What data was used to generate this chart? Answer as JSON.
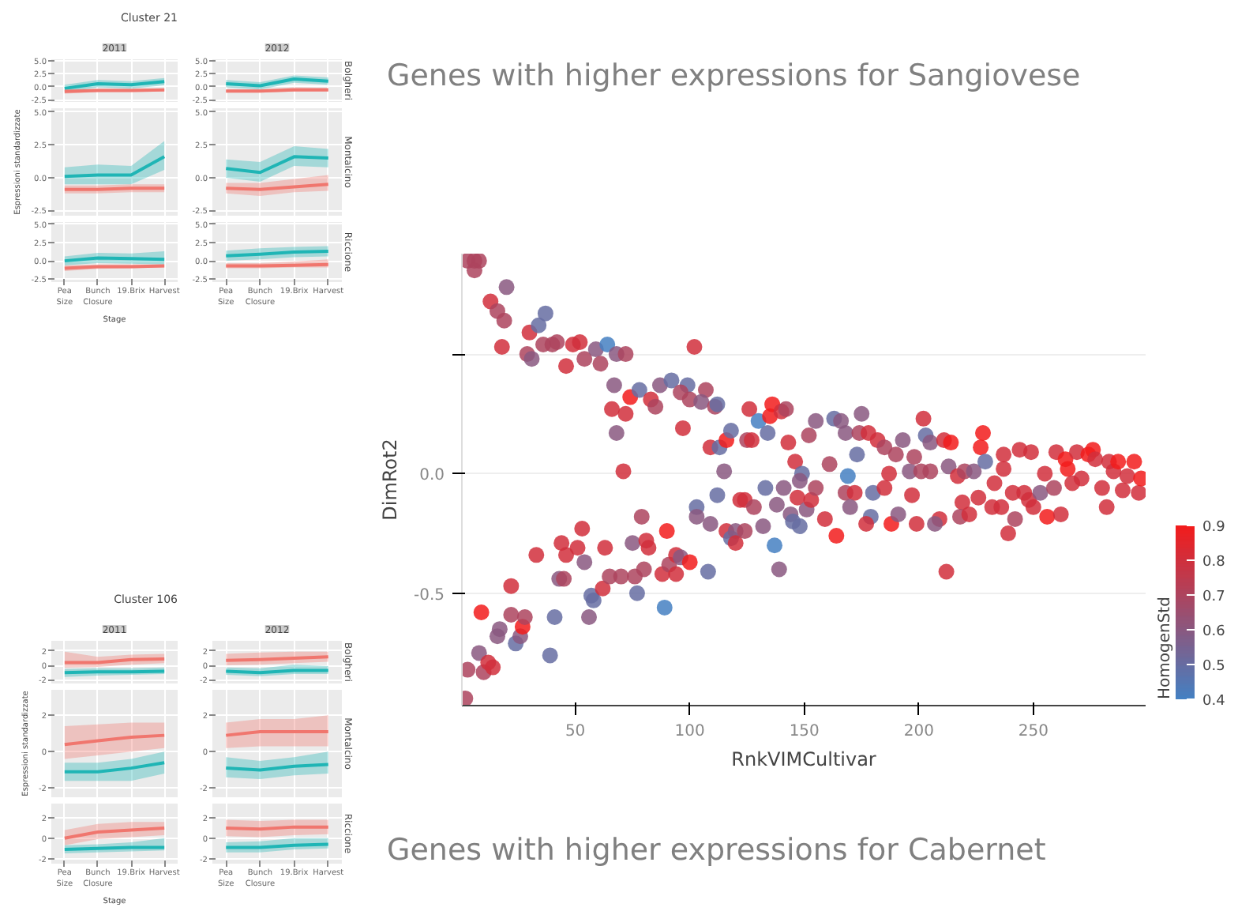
{
  "chart_data": [
    {
      "type": "line",
      "title": "Cluster 21",
      "subtitle": "2011",
      "categories": [
        null,
        null,
        null,
        null
      ],
      "ylim": [
        -2.9,
        5.3
      ],
      "yticks": [
        {
          "value": -2.5,
          "label": "-2.5"
        },
        {
          "value": 0,
          "label": "0.0"
        },
        {
          "value": 2.5,
          "label": "2.5"
        },
        {
          "value": 5,
          "label": "5.0"
        }
      ],
      "grid": true,
      "tick_labels": "y",
      "series": [
        {
          "color": "#1fb5b5",
          "values": [
            -0.3,
            0.6,
            0.4,
            1.0
          ],
          "lower": [
            -1.0,
            -0.1,
            -0.3,
            0.3
          ],
          "upper": [
            0.4,
            1.3,
            1.1,
            1.7
          ]
        },
        {
          "color": "#f0766e",
          "values": [
            -0.9,
            -0.7,
            -0.7,
            -0.6
          ],
          "lower": [
            -1.3,
            -1.0,
            -1.0,
            -0.9
          ],
          "upper": [
            -0.5,
            -0.4,
            -0.4,
            -0.3
          ]
        }
      ]
    },
    {
      "type": "line",
      "subtitle": "2012",
      "y2label": "Bolgheri",
      "categories": [
        null,
        null,
        null,
        null
      ],
      "ylim": [
        -2.9,
        5.3
      ],
      "yticks": [
        {
          "value": -2.5,
          "label": "-2.5"
        },
        {
          "value": 0,
          "label": "0.0"
        },
        {
          "value": 2.5,
          "label": "2.5"
        },
        {
          "value": 5,
          "label": "5.0"
        }
      ],
      "grid": true,
      "tick_labels": "y",
      "series": [
        {
          "color": "#1fb5b5",
          "values": [
            0.6,
            0.2,
            1.5,
            1.1
          ],
          "lower": [
            -0.1,
            -0.5,
            0.8,
            0.4
          ],
          "upper": [
            1.3,
            0.9,
            2.2,
            1.8
          ]
        },
        {
          "color": "#f0766e",
          "values": [
            -0.8,
            -0.8,
            -0.6,
            -0.6
          ],
          "lower": [
            -1.1,
            -1.1,
            -0.9,
            -0.9
          ],
          "upper": [
            -0.5,
            -0.5,
            -0.1,
            -0.2
          ]
        }
      ]
    },
    {
      "type": "line",
      "ylabel": "Espressioni standardizzate",
      "categories": [
        null,
        null,
        null,
        null
      ],
      "ylim": [
        -2.9,
        5.3
      ],
      "yticks": [
        {
          "value": -2.5,
          "label": "-2.5"
        },
        {
          "value": 0,
          "label": "0.0"
        },
        {
          "value": 2.5,
          "label": "2.5"
        },
        {
          "value": 5,
          "label": "5.0"
        }
      ],
      "grid": true,
      "tick_labels": "y",
      "series": [
        {
          "color": "#1fb5b5",
          "values": [
            0.1,
            0.2,
            0.2,
            1.6
          ],
          "lower": [
            -0.5,
            -0.5,
            -0.5,
            0.6
          ],
          "upper": [
            0.8,
            1.0,
            0.9,
            2.8
          ]
        },
        {
          "color": "#f0766e",
          "values": [
            -0.9,
            -0.9,
            -0.8,
            -0.8
          ],
          "lower": [
            -1.2,
            -1.2,
            -1.1,
            -1.1
          ],
          "upper": [
            -0.6,
            -0.6,
            -0.5,
            -0.5
          ]
        }
      ]
    },
    {
      "type": "line",
      "y2label": "Montalcino",
      "categories": [
        null,
        null,
        null,
        null
      ],
      "ylim": [
        -2.9,
        5.3
      ],
      "yticks": [
        {
          "value": -2.5,
          "label": "-2.5"
        },
        {
          "value": 0,
          "label": "0.0"
        },
        {
          "value": 2.5,
          "label": "2.5"
        },
        {
          "value": 5,
          "label": "5.0"
        }
      ],
      "grid": true,
      "tick_labels": "y",
      "series": [
        {
          "color": "#1fb5b5",
          "values": [
            0.7,
            0.4,
            1.6,
            1.5
          ],
          "lower": [
            0.0,
            -0.3,
            0.9,
            0.8
          ],
          "upper": [
            1.4,
            1.2,
            2.4,
            2.2
          ]
        },
        {
          "color": "#f0766e",
          "values": [
            -0.8,
            -0.9,
            -0.7,
            -0.5
          ],
          "lower": [
            -1.2,
            -1.4,
            -1.1,
            -1.0
          ],
          "upper": [
            -0.4,
            -0.4,
            -0.1,
            0.2
          ]
        }
      ]
    },
    {
      "type": "line",
      "xlabel": "Stage",
      "categories": [
        "Pea Size",
        "Bunch Closure",
        "19.Brix",
        "Harvest"
      ],
      "ylim": [
        -2.9,
        5.3
      ],
      "yticks": [
        {
          "value": -2.5,
          "label": "-2.5"
        },
        {
          "value": 0,
          "label": "0.0"
        },
        {
          "value": 2.5,
          "label": "2.5"
        },
        {
          "value": 5,
          "label": "5.0"
        }
      ],
      "grid": true,
      "series": [
        {
          "color": "#1fb5b5",
          "values": [
            0.0,
            0.4,
            0.3,
            0.2
          ],
          "lower": [
            -0.6,
            -0.3,
            -0.4,
            -0.5
          ],
          "upper": [
            0.6,
            1.1,
            1.0,
            1.3
          ]
        },
        {
          "color": "#f0766e",
          "values": [
            -1.0,
            -0.8,
            -0.8,
            -0.7
          ],
          "lower": [
            -1.4,
            -1.1,
            -1.0,
            -0.9
          ],
          "upper": [
            -0.6,
            -0.5,
            -0.5,
            -0.5
          ]
        }
      ]
    },
    {
      "type": "line",
      "y2label": "Riccione",
      "categories": [
        "Pea Size",
        "Bunch Closure",
        "19.Brix",
        "Harvest"
      ],
      "ylim": [
        -2.9,
        5.3
      ],
      "yticks": [
        {
          "value": -2.5,
          "label": "-2.5"
        },
        {
          "value": 0,
          "label": "0.0"
        },
        {
          "value": 2.5,
          "label": "2.5"
        },
        {
          "value": 5,
          "label": "5.0"
        }
      ],
      "grid": true,
      "series": [
        {
          "color": "#1fb5b5",
          "values": [
            0.7,
            0.9,
            1.2,
            1.3
          ],
          "lower": [
            0.0,
            0.2,
            0.5,
            0.6
          ],
          "upper": [
            1.4,
            1.7,
            1.9,
            2.0
          ]
        },
        {
          "color": "#f0766e",
          "values": [
            -0.7,
            -0.7,
            -0.6,
            -0.5
          ],
          "lower": [
            -1.0,
            -1.0,
            -0.9,
            -0.9
          ],
          "upper": [
            -0.3,
            -0.3,
            -0.1,
            0.2
          ]
        }
      ]
    },
    {
      "type": "scatter",
      "xlabel": "RnkVIMCultivar",
      "ylabel": "DimRot2",
      "clabel": "HomogenStd",
      "marker": "circle",
      "grid": "y",
      "annotations": [
        "Genes with higher expressions for Sangiovese",
        "Genes with higher expressions for Cabernet"
      ],
      "xlim": [
        0.5,
        299
      ],
      "ylim": [
        -0.97,
        0.92
      ],
      "xticks": [
        50,
        100,
        150,
        200,
        250
      ],
      "yticks": [
        {
          "value": -0.5,
          "label": "-0.5"
        },
        {
          "value": 0,
          "label": "0.0"
        },
        {
          "value": 0.5,
          "label": null
        }
      ],
      "clim": [
        0.4,
        0.9
      ],
      "cticks": [
        0.4,
        0.5,
        0.6,
        0.7,
        0.8,
        0.9
      ],
      "x": [
        3,
        6,
        8,
        6,
        13,
        16,
        20,
        19,
        18,
        30,
        29,
        31,
        34,
        37,
        36,
        40,
        42,
        46,
        49,
        52,
        54,
        59,
        61,
        64,
        68,
        72,
        67,
        66,
        68,
        72,
        74,
        71,
        78,
        83,
        85,
        87,
        92,
        99,
        96,
        97,
        102,
        100,
        107,
        105,
        111,
        112,
        109,
        113,
        116,
        118,
        115,
        126,
        125,
        127,
        130,
        134,
        136,
        135,
        140,
        142,
        143,
        146,
        149,
        148,
        152,
        155,
        2,
        3,
        8,
        9,
        10,
        12,
        14,
        16,
        17,
        22,
        22,
        24,
        26,
        27,
        28,
        33,
        39,
        41,
        43,
        45,
        44,
        46,
        51,
        53,
        54,
        56,
        57,
        58,
        62,
        63,
        65,
        70,
        75,
        77,
        76,
        79,
        80,
        81,
        82,
        88,
        89,
        90,
        91,
        94,
        94,
        96,
        100,
        103,
        103,
        108,
        109,
        112,
        116,
        118,
        120,
        120,
        122,
        124,
        124,
        128,
        132,
        133,
        137,
        138,
        139,
        141,
        144,
        145,
        147,
        148,
        151,
        153,
        155,
        159,
        161,
        163,
        166,
        168,
        175,
        174,
        173,
        169,
        168,
        172,
        170,
        164,
        178,
        180,
        179,
        177,
        182,
        185,
        187,
        185,
        188,
        190,
        193,
        191,
        196,
        197,
        198,
        199,
        201,
        202,
        203,
        205,
        205,
        209,
        207,
        211,
        214,
        212,
        213,
        217,
        220,
        219,
        218,
        222,
        224,
        226,
        227,
        228,
        229,
        232,
        233,
        236,
        237,
        237,
        239,
        241,
        242,
        244,
        246,
        248,
        249,
        250,
        253,
        255,
        256,
        259,
        260,
        262,
        264,
        265,
        267,
        269,
        271,
        274,
        276,
        277,
        280,
        282,
        283,
        285,
        287,
        289,
        291,
        294,
        296,
        297
      ],
      "values": [
        0.89,
        0.89,
        0.89,
        0.85,
        0.72,
        0.68,
        0.78,
        0.64,
        0.53,
        0.59,
        0.5,
        0.48,
        0.62,
        0.67,
        0.54,
        0.54,
        0.55,
        0.45,
        0.54,
        0.55,
        0.48,
        0.52,
        0.46,
        0.54,
        0.5,
        0.5,
        0.37,
        0.27,
        0.17,
        0.25,
        0.32,
        0.01,
        0.35,
        0.31,
        0.28,
        0.37,
        0.39,
        0.37,
        0.34,
        0.19,
        0.53,
        0.31,
        0.35,
        0.3,
        0.28,
        0.29,
        0.11,
        0.11,
        0.14,
        0.18,
        0.01,
        0.27,
        0.14,
        0.14,
        0.22,
        0.17,
        0.29,
        0.24,
        0.26,
        0.27,
        0.13,
        0.05,
        0.0,
        -0.03,
        0.16,
        0.22,
        -0.94,
        -0.82,
        -0.75,
        -0.58,
        -0.83,
        -0.79,
        -0.81,
        -0.68,
        -0.65,
        -0.59,
        -0.47,
        -0.71,
        -0.68,
        -0.64,
        -0.6,
        -0.34,
        -0.76,
        -0.6,
        -0.44,
        -0.44,
        -0.29,
        -0.34,
        -0.31,
        -0.23,
        -0.37,
        -0.6,
        -0.51,
        -0.53,
        -0.48,
        -0.31,
        -0.43,
        -0.43,
        -0.29,
        -0.5,
        -0.43,
        -0.18,
        -0.4,
        -0.28,
        -0.31,
        -0.42,
        -0.56,
        -0.24,
        -0.38,
        -0.34,
        -0.42,
        -0.35,
        -0.37,
        -0.14,
        -0.18,
        -0.41,
        -0.21,
        -0.09,
        -0.24,
        -0.27,
        -0.24,
        -0.29,
        -0.11,
        -0.11,
        -0.24,
        -0.14,
        -0.22,
        -0.06,
        -0.3,
        -0.13,
        -0.4,
        -0.06,
        -0.17,
        -0.2,
        -0.1,
        -0.22,
        -0.15,
        -0.11,
        -0.06,
        -0.19,
        0.04,
        0.23,
        0.22,
        0.17,
        0.25,
        0.17,
        0.08,
        -0.01,
        -0.08,
        -0.08,
        -0.14,
        -0.26,
        0.17,
        -0.08,
        -0.18,
        -0.21,
        0.14,
        0.11,
        0.0,
        -0.06,
        -0.21,
        0.08,
        0.14,
        -0.17,
        0.01,
        -0.09,
        0.07,
        -0.21,
        0.01,
        0.23,
        0.16,
        0.13,
        0.01,
        -0.19,
        -0.21,
        0.14,
        0.13,
        -0.41,
        0.03,
        -0.01,
        0.01,
        -0.12,
        -0.18,
        -0.17,
        0.01,
        -0.1,
        0.11,
        0.17,
        0.05,
        -0.14,
        -0.04,
        -0.14,
        0.02,
        0.08,
        -0.25,
        -0.08,
        -0.19,
        0.1,
        -0.08,
        -0.11,
        0.09,
        -0.14,
        -0.08,
        0.0,
        -0.18,
        -0.06,
        0.09,
        -0.17,
        0.06,
        0.02,
        -0.04,
        0.09,
        -0.02,
        0.08,
        0.1,
        0.06,
        -0.06,
        -0.14,
        0.05,
        0.01,
        0.05,
        -0.07,
        -0.01,
        0.05,
        -0.08,
        -0.02
      ],
      "cvalues": [
        0.7,
        0.7,
        0.7,
        0.7,
        0.8,
        0.7,
        0.6,
        0.7,
        0.8,
        0.8,
        0.7,
        0.6,
        0.5,
        0.5,
        0.7,
        0.7,
        0.7,
        0.8,
        0.8,
        0.8,
        0.7,
        0.6,
        0.7,
        0.4,
        0.6,
        0.7,
        0.6,
        0.8,
        0.6,
        0.8,
        0.9,
        0.8,
        0.5,
        0.8,
        0.7,
        0.6,
        0.5,
        0.5,
        0.7,
        0.8,
        0.8,
        0.7,
        0.7,
        0.6,
        0.7,
        0.5,
        0.8,
        0.5,
        0.9,
        0.5,
        0.6,
        0.8,
        0.7,
        0.8,
        0.4,
        0.5,
        0.9,
        0.9,
        0.8,
        0.7,
        0.8,
        0.8,
        0.5,
        0.6,
        0.7,
        0.6,
        0.7,
        0.7,
        0.6,
        0.9,
        0.7,
        0.8,
        0.8,
        0.6,
        0.6,
        0.7,
        0.8,
        0.5,
        0.6,
        0.9,
        0.7,
        0.8,
        0.5,
        0.5,
        0.6,
        0.7,
        0.8,
        0.8,
        0.8,
        0.8,
        0.6,
        0.6,
        0.5,
        0.5,
        0.8,
        0.8,
        0.7,
        0.7,
        0.6,
        0.5,
        0.7,
        0.7,
        0.7,
        0.8,
        0.8,
        0.8,
        0.4,
        0.9,
        0.7,
        0.8,
        0.8,
        0.6,
        0.9,
        0.5,
        0.6,
        0.5,
        0.6,
        0.5,
        0.8,
        0.5,
        0.6,
        0.8,
        0.8,
        0.8,
        0.7,
        0.7,
        0.6,
        0.5,
        0.4,
        0.6,
        0.6,
        0.6,
        0.6,
        0.5,
        0.8,
        0.5,
        0.6,
        0.8,
        0.7,
        0.8,
        0.7,
        0.5,
        0.6,
        0.6,
        0.6,
        0.7,
        0.5,
        0.4,
        0.7,
        0.8,
        0.6,
        0.9,
        0.8,
        0.5,
        0.5,
        0.8,
        0.8,
        0.7,
        0.8,
        0.8,
        0.9,
        0.7,
        0.6,
        0.6,
        0.6,
        0.8,
        0.7,
        0.8,
        0.7,
        0.8,
        0.5,
        0.6,
        0.7,
        0.8,
        0.6,
        0.8,
        0.9,
        0.8,
        0.6,
        0.8,
        0.7,
        0.8,
        0.7,
        0.8,
        0.6,
        0.8,
        0.9,
        0.9,
        0.5,
        0.8,
        0.8,
        0.8,
        0.8,
        0.8,
        0.8,
        0.8,
        0.7,
        0.8,
        0.8,
        0.8,
        0.8,
        0.8,
        0.6,
        0.8,
        0.9,
        0.7,
        0.8,
        0.8,
        0.9,
        0.9,
        0.8,
        0.8,
        0.8,
        0.9,
        0.9,
        0.8,
        0.8,
        0.8,
        0.8,
        0.8,
        0.9,
        0.8,
        0.8,
        0.9,
        0.8,
        0.9
      ]
    },
    {
      "type": "line",
      "title": "Cluster 106",
      "subtitle": "2011",
      "categories": [
        null,
        null,
        null,
        null
      ],
      "ylim": [
        -2.5,
        3.4
      ],
      "yticks": [
        -2,
        0,
        2
      ],
      "grid": true,
      "tick_labels": "y",
      "series": [
        {
          "color": "#f0766e",
          "values": [
            0.4,
            0.4,
            0.8,
            0.9
          ],
          "lower": [
            -0.3,
            -0.2,
            0.1,
            0.3
          ],
          "upper": [
            1.9,
            1.2,
            1.5,
            1.6
          ]
        },
        {
          "color": "#1fb5b5",
          "values": [
            -1.0,
            -0.9,
            -0.9,
            -0.8
          ],
          "lower": [
            -1.6,
            -1.4,
            -1.3,
            -1.2
          ],
          "upper": [
            -0.5,
            -0.4,
            -0.4,
            -0.3
          ]
        }
      ]
    },
    {
      "type": "line",
      "subtitle": "2012",
      "y2label": "Bolgheri",
      "categories": [
        null,
        null,
        null,
        null
      ],
      "ylim": [
        -2.5,
        3.4
      ],
      "yticks": [
        -2,
        0,
        2
      ],
      "grid": true,
      "tick_labels": "y",
      "series": [
        {
          "color": "#f0766e",
          "values": [
            0.7,
            0.8,
            1.0,
            1.2
          ],
          "lower": [
            0.0,
            0.1,
            0.3,
            0.5
          ],
          "upper": [
            1.6,
            1.8,
            1.9,
            1.9
          ]
        },
        {
          "color": "#1fb5b5",
          "values": [
            -0.8,
            -1.0,
            -0.7,
            -0.7
          ],
          "lower": [
            -1.3,
            -1.5,
            -1.2,
            -1.2
          ],
          "upper": [
            -0.3,
            -0.4,
            0.1,
            -0.1
          ]
        }
      ]
    },
    {
      "type": "line",
      "ylabel": "Espressioni standardizzate",
      "categories": [
        null,
        null,
        null,
        null
      ],
      "ylim": [
        -2.5,
        3.4
      ],
      "yticks": [
        -2,
        0,
        2
      ],
      "grid": true,
      "tick_labels": "y",
      "series": [
        {
          "color": "#f0766e",
          "values": [
            0.4,
            0.6,
            0.8,
            0.9
          ],
          "lower": [
            -0.4,
            -0.2,
            0.0,
            0.2
          ],
          "upper": [
            1.4,
            1.5,
            1.6,
            1.6
          ]
        },
        {
          "color": "#1fb5b5",
          "values": [
            -1.1,
            -1.1,
            -0.9,
            -0.6
          ],
          "lower": [
            -1.6,
            -1.6,
            -1.6,
            -1.2
          ],
          "upper": [
            -0.6,
            -0.6,
            -0.4,
            0.0
          ]
        }
      ]
    },
    {
      "type": "line",
      "y2label": "Montalcino",
      "categories": [
        null,
        null,
        null,
        null
      ],
      "ylim": [
        -2.5,
        3.4
      ],
      "yticks": [
        -2,
        0,
        2
      ],
      "grid": true,
      "tick_labels": "y",
      "series": [
        {
          "color": "#f0766e",
          "values": [
            0.9,
            1.1,
            1.1,
            1.1
          ],
          "lower": [
            0.2,
            0.3,
            0.3,
            0.3
          ],
          "upper": [
            1.6,
            1.8,
            1.8,
            2.0
          ]
        },
        {
          "color": "#1fb5b5",
          "values": [
            -0.9,
            -1.0,
            -0.8,
            -0.7
          ],
          "lower": [
            -1.4,
            -1.5,
            -1.3,
            -1.2
          ],
          "upper": [
            -0.3,
            -0.5,
            -0.3,
            0.0
          ]
        }
      ]
    },
    {
      "type": "line",
      "xlabel": "Stage",
      "categories": [
        "Pea Size",
        "Bunch Closure",
        "19.Brix",
        "Harvest"
      ],
      "ylim": [
        -2.5,
        3.4
      ],
      "yticks": [
        -2,
        0,
        2
      ],
      "grid": true,
      "series": [
        {
          "color": "#f0766e",
          "values": [
            0.0,
            0.6,
            0.8,
            1.0
          ],
          "lower": [
            -0.7,
            -0.1,
            0.1,
            0.3
          ],
          "upper": [
            0.8,
            1.4,
            1.6,
            1.6
          ]
        },
        {
          "color": "#1fb5b5",
          "values": [
            -1.1,
            -1.0,
            -0.9,
            -0.9
          ],
          "lower": [
            -1.5,
            -1.4,
            -1.3,
            -1.2
          ],
          "upper": [
            -0.7,
            -0.6,
            -0.4,
            0.0
          ]
        }
      ]
    },
    {
      "type": "line",
      "y2label": "Riccione",
      "categories": [
        "Pea Size",
        "Bunch Closure",
        "19.Brix",
        "Harvest"
      ],
      "ylim": [
        -2.5,
        3.4
      ],
      "yticks": [
        -2,
        0,
        2
      ],
      "grid": true,
      "series": [
        {
          "color": "#f0766e",
          "values": [
            1.0,
            0.9,
            1.1,
            1.1
          ],
          "lower": [
            0.2,
            0.1,
            0.3,
            0.4
          ],
          "upper": [
            1.8,
            1.7,
            1.8,
            1.8
          ]
        },
        {
          "color": "#1fb5b5",
          "values": [
            -0.9,
            -0.9,
            -0.7,
            -0.6
          ],
          "lower": [
            -1.4,
            -1.4,
            -1.1,
            -1.0
          ],
          "upper": [
            -0.4,
            -0.3,
            0.0,
            0.0
          ]
        }
      ]
    }
  ]
}
